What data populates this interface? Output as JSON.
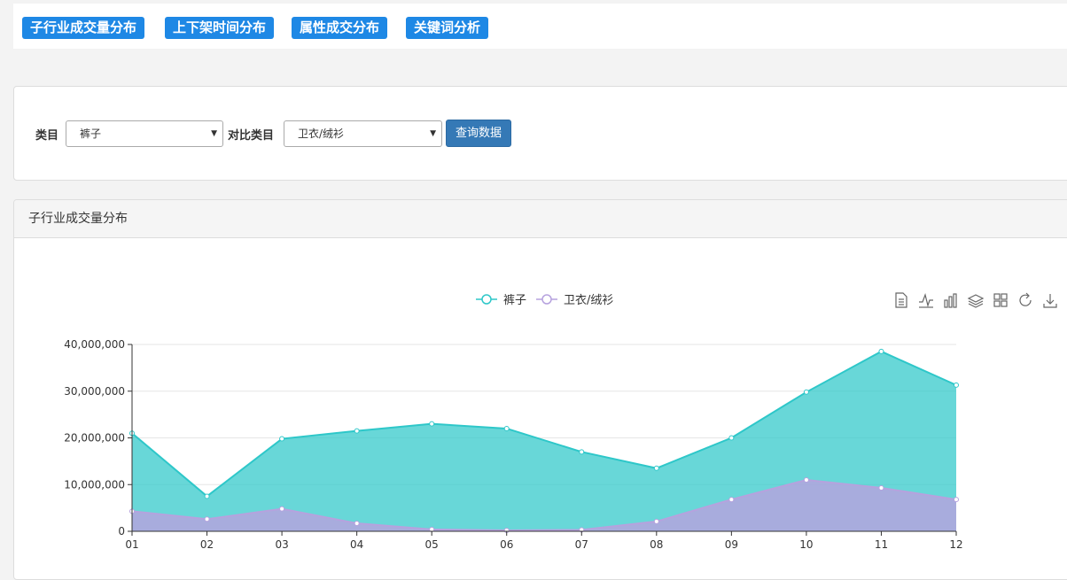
{
  "tabs": [
    {
      "label": "子行业成交量分布"
    },
    {
      "label": "上下架时间分布"
    },
    {
      "label": "属性成交分布"
    },
    {
      "label": "关键词分析"
    }
  ],
  "query": {
    "category_label": "类目",
    "category_value": "裤子",
    "compare_label": "对比类目",
    "compare_value": "卫衣/绒衫",
    "button_label": "查询数据"
  },
  "panel": {
    "title": "子行业成交量分布"
  },
  "toolbar_icons": [
    "data-view-icon",
    "line-chart-icon",
    "bar-chart-icon",
    "stack-icon",
    "tiled-icon",
    "restore-icon",
    "save-image-icon"
  ],
  "colors": {
    "tab_bg": "#1e88e5",
    "button_bg": "#3579b6",
    "series1": "#2ec7c9",
    "series2": "#b6a2de"
  },
  "chart_data": {
    "type": "area",
    "x": [
      "01",
      "02",
      "03",
      "04",
      "05",
      "06",
      "07",
      "08",
      "09",
      "10",
      "11",
      "12"
    ],
    "ylim": [
      0,
      40000000
    ],
    "yticks": [
      "0",
      "10,000,000",
      "20,000,000",
      "30,000,000",
      "40,000,000"
    ],
    "legend": "top-center",
    "grid": true,
    "series": [
      {
        "name": "裤子",
        "color": "#2ec7c9",
        "values": [
          21000000,
          7500000,
          19800000,
          21500000,
          23000000,
          22000000,
          17000000,
          13500000,
          20000000,
          29800000,
          38500000,
          31300000
        ]
      },
      {
        "name": "卫衣/绒衫",
        "color": "#b6a2de",
        "values": [
          4300000,
          2600000,
          4800000,
          1700000,
          400000,
          200000,
          300000,
          2100000,
          6800000,
          11000000,
          9300000,
          6800000
        ]
      }
    ]
  }
}
